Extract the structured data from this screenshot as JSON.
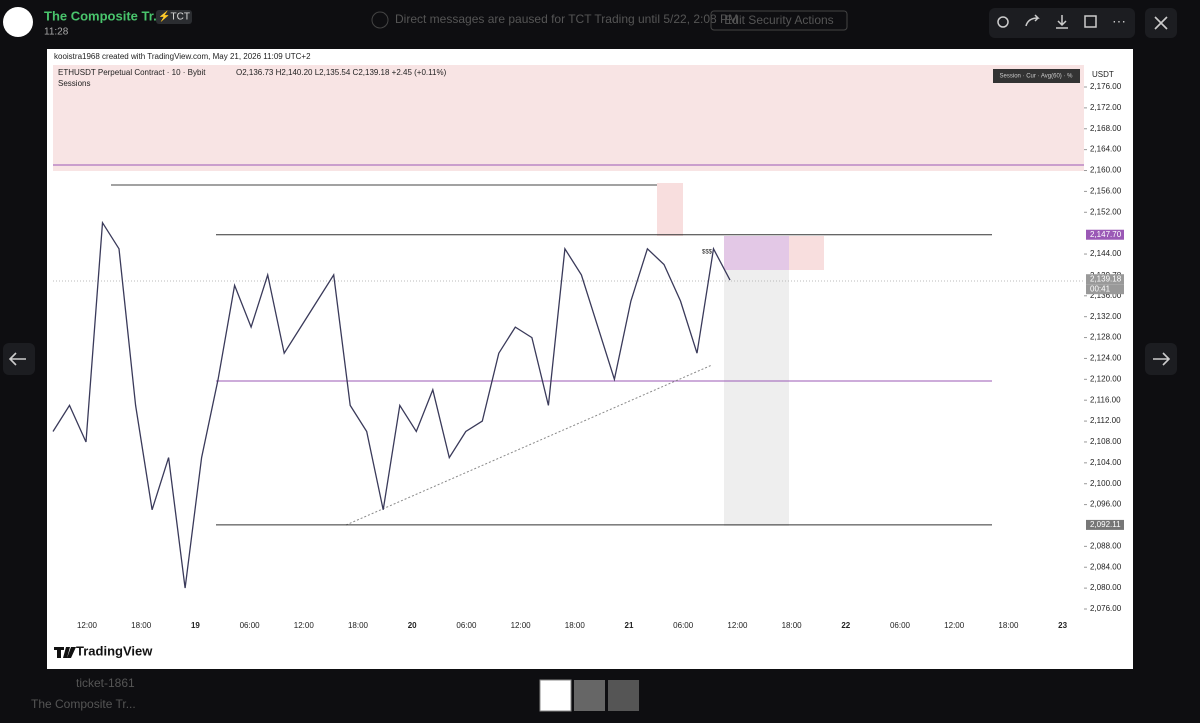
{
  "header": {
    "server": "The Composite Tr...",
    "badge": "⚡TCT",
    "time": "11:28",
    "notice": "Direct messages are paused for TCT Trading until 5/22, 2:08 PM",
    "button": "Edit Security Actions"
  },
  "sidebar": {
    "channel": "ticket-1861",
    "server": "The Composite Tr..."
  },
  "chart": {
    "type": "line",
    "credit": "kooistra1968 created with TradingView.com, May 21, 2026 11:09 UTC+2",
    "title": "ETHUSDT Perpetual Contract · 10 · Bybit",
    "ohlc": "O2,136.73  H2,140.20  L2,135.54  C2,139.18  +2.45 (+0.11%)",
    "indicator": "Sessions",
    "legend": "Session · Cur · Avg(60) · %",
    "unit": "USDT",
    "note": "$$$",
    "brand": "TradingView",
    "color": "#3a3a5a",
    "ylim": [
      2076,
      2176
    ],
    "yticks": [
      {
        "value": 2076,
        "label": "2,076.00"
      },
      {
        "value": 2080,
        "label": "2,080.00"
      },
      {
        "value": 2084,
        "label": "2,084.00"
      },
      {
        "value": 2088,
        "label": "2,088.00"
      },
      {
        "value": 2096,
        "label": "2,096.00"
      },
      {
        "value": 2100,
        "label": "2,100.00"
      },
      {
        "value": 2104,
        "label": "2,104.00"
      },
      {
        "value": 2108,
        "label": "2,108.00"
      },
      {
        "value": 2112,
        "label": "2,112.00"
      },
      {
        "value": 2116,
        "label": "2,116.00"
      },
      {
        "value": 2120,
        "label": "2,120.00"
      },
      {
        "value": 2124,
        "label": "2,124.00"
      },
      {
        "value": 2128,
        "label": "2,128.00"
      },
      {
        "value": 2132,
        "label": "2,132.00"
      },
      {
        "value": 2136,
        "label": "2,136.00"
      },
      {
        "value": 2144,
        "label": "2,144.00"
      },
      {
        "value": 2152,
        "label": "2,152.00"
      },
      {
        "value": 2156,
        "label": "2,156.00"
      },
      {
        "value": 2160,
        "label": "2,160.00"
      },
      {
        "value": 2164,
        "label": "2,164.00"
      },
      {
        "value": 2168,
        "label": "2,168.00"
      },
      {
        "value": 2172,
        "label": "2,172.00"
      },
      {
        "value": 2176,
        "label": "2,176.00"
      }
    ],
    "categories": [
      "12:00",
      "18:00",
      "19",
      "06:00",
      "12:00",
      "18:00",
      "20",
      "06:00",
      "12:00",
      "18:00",
      "21",
      "06:00",
      "12:00",
      "18:00",
      "22",
      "06:00",
      "12:00",
      "18:00",
      "23"
    ],
    "values": [
      2110,
      2115,
      2108,
      2150,
      2145,
      2115,
      2095,
      2105,
      2080,
      2105,
      2120,
      2138,
      2130,
      2140,
      2125,
      2130,
      2135,
      2140,
      2115,
      2110,
      2095,
      2115,
      2110,
      2118,
      2105,
      2110,
      2112,
      2125,
      2130,
      2128,
      2115,
      2145,
      2140,
      2130,
      2120,
      2135,
      2145,
      2142,
      2135,
      2125,
      2145,
      2139
    ],
    "levels": [
      {
        "value": 2147.7,
        "label": "2,147.70"
      },
      {
        "value": 2092.11,
        "label": "2,092.11"
      },
      {
        "value": 2139.78,
        "label": "2,139.78"
      },
      {
        "value": 2139.18,
        "label": "2,139.18"
      }
    ],
    "countdown": "00:41"
  }
}
